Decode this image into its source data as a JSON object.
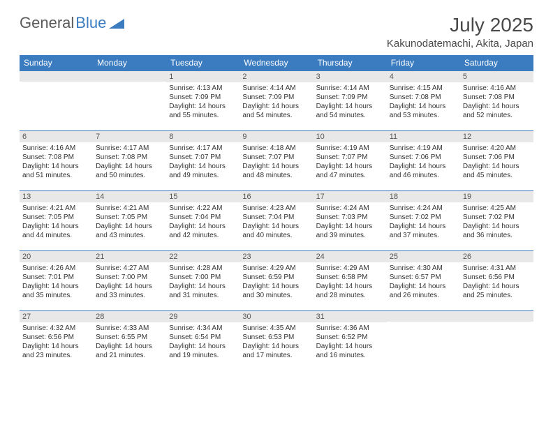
{
  "logo": {
    "part1": "General",
    "part2": "Blue"
  },
  "title": "July 2025",
  "location": "Kakunodatemachi, Akita, Japan",
  "dayHeaders": [
    "Sunday",
    "Monday",
    "Tuesday",
    "Wednesday",
    "Thursday",
    "Friday",
    "Saturday"
  ],
  "colors": {
    "headerBg": "#3b7bbf",
    "headerText": "#ffffff",
    "dayNumBg": "#e8e8e8",
    "bodyText": "#333333",
    "titleText": "#4a4a4a"
  },
  "weeks": [
    [
      {
        "n": "",
        "sr": "",
        "ss": "",
        "dl": ""
      },
      {
        "n": "",
        "sr": "",
        "ss": "",
        "dl": ""
      },
      {
        "n": "1",
        "sr": "Sunrise: 4:13 AM",
        "ss": "Sunset: 7:09 PM",
        "dl": "Daylight: 14 hours and 55 minutes."
      },
      {
        "n": "2",
        "sr": "Sunrise: 4:14 AM",
        "ss": "Sunset: 7:09 PM",
        "dl": "Daylight: 14 hours and 54 minutes."
      },
      {
        "n": "3",
        "sr": "Sunrise: 4:14 AM",
        "ss": "Sunset: 7:09 PM",
        "dl": "Daylight: 14 hours and 54 minutes."
      },
      {
        "n": "4",
        "sr": "Sunrise: 4:15 AM",
        "ss": "Sunset: 7:08 PM",
        "dl": "Daylight: 14 hours and 53 minutes."
      },
      {
        "n": "5",
        "sr": "Sunrise: 4:16 AM",
        "ss": "Sunset: 7:08 PM",
        "dl": "Daylight: 14 hours and 52 minutes."
      }
    ],
    [
      {
        "n": "6",
        "sr": "Sunrise: 4:16 AM",
        "ss": "Sunset: 7:08 PM",
        "dl": "Daylight: 14 hours and 51 minutes."
      },
      {
        "n": "7",
        "sr": "Sunrise: 4:17 AM",
        "ss": "Sunset: 7:08 PM",
        "dl": "Daylight: 14 hours and 50 minutes."
      },
      {
        "n": "8",
        "sr": "Sunrise: 4:17 AM",
        "ss": "Sunset: 7:07 PM",
        "dl": "Daylight: 14 hours and 49 minutes."
      },
      {
        "n": "9",
        "sr": "Sunrise: 4:18 AM",
        "ss": "Sunset: 7:07 PM",
        "dl": "Daylight: 14 hours and 48 minutes."
      },
      {
        "n": "10",
        "sr": "Sunrise: 4:19 AM",
        "ss": "Sunset: 7:07 PM",
        "dl": "Daylight: 14 hours and 47 minutes."
      },
      {
        "n": "11",
        "sr": "Sunrise: 4:19 AM",
        "ss": "Sunset: 7:06 PM",
        "dl": "Daylight: 14 hours and 46 minutes."
      },
      {
        "n": "12",
        "sr": "Sunrise: 4:20 AM",
        "ss": "Sunset: 7:06 PM",
        "dl": "Daylight: 14 hours and 45 minutes."
      }
    ],
    [
      {
        "n": "13",
        "sr": "Sunrise: 4:21 AM",
        "ss": "Sunset: 7:05 PM",
        "dl": "Daylight: 14 hours and 44 minutes."
      },
      {
        "n": "14",
        "sr": "Sunrise: 4:21 AM",
        "ss": "Sunset: 7:05 PM",
        "dl": "Daylight: 14 hours and 43 minutes."
      },
      {
        "n": "15",
        "sr": "Sunrise: 4:22 AM",
        "ss": "Sunset: 7:04 PM",
        "dl": "Daylight: 14 hours and 42 minutes."
      },
      {
        "n": "16",
        "sr": "Sunrise: 4:23 AM",
        "ss": "Sunset: 7:04 PM",
        "dl": "Daylight: 14 hours and 40 minutes."
      },
      {
        "n": "17",
        "sr": "Sunrise: 4:24 AM",
        "ss": "Sunset: 7:03 PM",
        "dl": "Daylight: 14 hours and 39 minutes."
      },
      {
        "n": "18",
        "sr": "Sunrise: 4:24 AM",
        "ss": "Sunset: 7:02 PM",
        "dl": "Daylight: 14 hours and 37 minutes."
      },
      {
        "n": "19",
        "sr": "Sunrise: 4:25 AM",
        "ss": "Sunset: 7:02 PM",
        "dl": "Daylight: 14 hours and 36 minutes."
      }
    ],
    [
      {
        "n": "20",
        "sr": "Sunrise: 4:26 AM",
        "ss": "Sunset: 7:01 PM",
        "dl": "Daylight: 14 hours and 35 minutes."
      },
      {
        "n": "21",
        "sr": "Sunrise: 4:27 AM",
        "ss": "Sunset: 7:00 PM",
        "dl": "Daylight: 14 hours and 33 minutes."
      },
      {
        "n": "22",
        "sr": "Sunrise: 4:28 AM",
        "ss": "Sunset: 7:00 PM",
        "dl": "Daylight: 14 hours and 31 minutes."
      },
      {
        "n": "23",
        "sr": "Sunrise: 4:29 AM",
        "ss": "Sunset: 6:59 PM",
        "dl": "Daylight: 14 hours and 30 minutes."
      },
      {
        "n": "24",
        "sr": "Sunrise: 4:29 AM",
        "ss": "Sunset: 6:58 PM",
        "dl": "Daylight: 14 hours and 28 minutes."
      },
      {
        "n": "25",
        "sr": "Sunrise: 4:30 AM",
        "ss": "Sunset: 6:57 PM",
        "dl": "Daylight: 14 hours and 26 minutes."
      },
      {
        "n": "26",
        "sr": "Sunrise: 4:31 AM",
        "ss": "Sunset: 6:56 PM",
        "dl": "Daylight: 14 hours and 25 minutes."
      }
    ],
    [
      {
        "n": "27",
        "sr": "Sunrise: 4:32 AM",
        "ss": "Sunset: 6:56 PM",
        "dl": "Daylight: 14 hours and 23 minutes."
      },
      {
        "n": "28",
        "sr": "Sunrise: 4:33 AM",
        "ss": "Sunset: 6:55 PM",
        "dl": "Daylight: 14 hours and 21 minutes."
      },
      {
        "n": "29",
        "sr": "Sunrise: 4:34 AM",
        "ss": "Sunset: 6:54 PM",
        "dl": "Daylight: 14 hours and 19 minutes."
      },
      {
        "n": "30",
        "sr": "Sunrise: 4:35 AM",
        "ss": "Sunset: 6:53 PM",
        "dl": "Daylight: 14 hours and 17 minutes."
      },
      {
        "n": "31",
        "sr": "Sunrise: 4:36 AM",
        "ss": "Sunset: 6:52 PM",
        "dl": "Daylight: 14 hours and 16 minutes."
      },
      {
        "n": "",
        "sr": "",
        "ss": "",
        "dl": ""
      },
      {
        "n": "",
        "sr": "",
        "ss": "",
        "dl": ""
      }
    ]
  ]
}
